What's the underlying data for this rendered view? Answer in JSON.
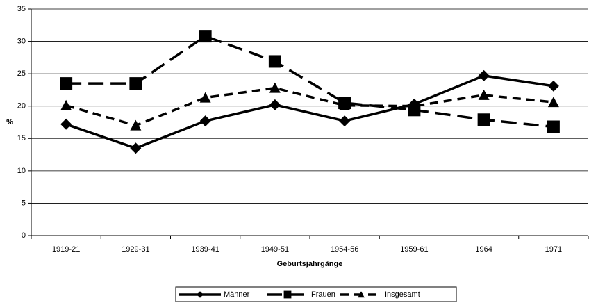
{
  "chart_data": {
    "type": "line",
    "xlabel": "Geburtsjahrgänge",
    "ylabel": "%",
    "categories": [
      "1919-21",
      "1929-31",
      "1939-41",
      "1949-51",
      "1954-56",
      "1959-61",
      "1964",
      "1971"
    ],
    "series": [
      {
        "name": "Männer",
        "color": "#000000",
        "marker": "diamond",
        "dash": "solid",
        "values": [
          17.2,
          13.5,
          17.7,
          20.2,
          17.7,
          20.3,
          24.7,
          23.1
        ]
      },
      {
        "name": "Frauen",
        "color": "#000000",
        "marker": "square",
        "dash": "long",
        "values": [
          23.5,
          23.5,
          30.8,
          26.9,
          20.5,
          19.4,
          17.9,
          16.8
        ]
      },
      {
        "name": "Insgesamt",
        "color": "#000000",
        "marker": "triangle",
        "dash": "short",
        "values": [
          20.1,
          17.0,
          21.3,
          22.8,
          20.1,
          20.0,
          21.7,
          20.6
        ]
      }
    ],
    "ylim": [
      0,
      35
    ],
    "yticks": [
      0,
      5,
      10,
      15,
      20,
      25,
      30,
      35
    ],
    "grid": true,
    "legend": "bottom"
  }
}
